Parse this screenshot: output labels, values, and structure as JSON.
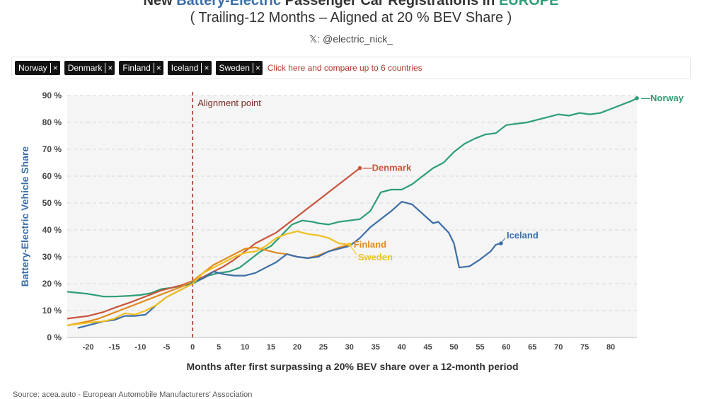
{
  "header": {
    "title_prefix": "New ",
    "title_blue": "Battery-Electric",
    "title_mid": " Passenger Car Registrations in ",
    "title_green": "EUROPE",
    "subtitle": "( Trailing-12 Months – Aligned at 20 % BEV Share )",
    "handle": "𝕏: @electric_nick_"
  },
  "filters": {
    "chips": [
      {
        "label": "Norway",
        "remove": "×"
      },
      {
        "label": "Denmark",
        "remove": "×"
      },
      {
        "label": "Finland",
        "remove": "×"
      },
      {
        "label": "Iceland",
        "remove": "×"
      },
      {
        "label": "Sweden",
        "remove": "×"
      }
    ],
    "compare_link": "Click here and compare up to 6 countries"
  },
  "source": "Source: acea.auto - European Automobile Manufacturers' Association",
  "chart_data": {
    "type": "line",
    "xlabel": "Months after first surpassing a 20% BEV share over a 12-month period",
    "ylabel": "Battery-Electric Vehicle Share",
    "xlim": [
      -24,
      85
    ],
    "ylim": [
      0,
      90
    ],
    "x_ticks": [
      -20,
      -15,
      -10,
      -5,
      0,
      5,
      10,
      15,
      20,
      25,
      30,
      35,
      40,
      45,
      50,
      55,
      60,
      65,
      70,
      75,
      80
    ],
    "y_ticks": [
      "0 %",
      "10 %",
      "20 %",
      "30 %",
      "40 %",
      "50 %",
      "60 %",
      "70 %",
      "80 %",
      "90 %"
    ],
    "grid": true,
    "annotation": {
      "x": 0,
      "label": "Alignment point"
    },
    "series": [
      {
        "name": "Norway",
        "color": "#2e9e74",
        "label": "—Norway",
        "points": [
          [
            -24,
            17
          ],
          [
            -20,
            16.2
          ],
          [
            -17,
            15.2
          ],
          [
            -15,
            15.2
          ],
          [
            -12,
            15.5
          ],
          [
            -10,
            15.8
          ],
          [
            -8,
            16.5
          ],
          [
            -6,
            18
          ],
          [
            -4,
            18.5
          ],
          [
            -2,
            19.2
          ],
          [
            0,
            20
          ],
          [
            1,
            21
          ],
          [
            3,
            23
          ],
          [
            5,
            24
          ],
          [
            7,
            24.5
          ],
          [
            9,
            26
          ],
          [
            11,
            29
          ],
          [
            13,
            32
          ],
          [
            15,
            34
          ],
          [
            17,
            38
          ],
          [
            19,
            42
          ],
          [
            21,
            43.5
          ],
          [
            23,
            43
          ],
          [
            24,
            42.5
          ],
          [
            26,
            42
          ],
          [
            28,
            43
          ],
          [
            30,
            43.5
          ],
          [
            32,
            44
          ],
          [
            34,
            47
          ],
          [
            36,
            54
          ],
          [
            38,
            55
          ],
          [
            40,
            55
          ],
          [
            42,
            57
          ],
          [
            44,
            60
          ],
          [
            46,
            63
          ],
          [
            48,
            65
          ],
          [
            50,
            69
          ],
          [
            52,
            72
          ],
          [
            54,
            74
          ],
          [
            56,
            75.5
          ],
          [
            58,
            76
          ],
          [
            60,
            79
          ],
          [
            62,
            79.5
          ],
          [
            64,
            80
          ],
          [
            66,
            81
          ],
          [
            68,
            82
          ],
          [
            70,
            83
          ],
          [
            72,
            82.5
          ],
          [
            74,
            83.5
          ],
          [
            76,
            83
          ],
          [
            78,
            83.5
          ],
          [
            80,
            85
          ],
          [
            82,
            86.5
          ],
          [
            84,
            88
          ],
          [
            85,
            89
          ]
        ]
      },
      {
        "name": "Denmark",
        "color": "#c8553d",
        "label": "—Denmark",
        "points": [
          [
            -24,
            7
          ],
          [
            -20,
            8
          ],
          [
            -17,
            9.5
          ],
          [
            -15,
            11
          ],
          [
            -12,
            13
          ],
          [
            -10,
            14.5
          ],
          [
            -8,
            16
          ],
          [
            -6,
            17.5
          ],
          [
            -4,
            18.5
          ],
          [
            -2,
            19.5
          ],
          [
            0,
            21
          ],
          [
            2,
            22.5
          ],
          [
            4,
            24.5
          ],
          [
            6,
            26.5
          ],
          [
            8,
            29
          ],
          [
            10,
            32
          ],
          [
            12,
            35
          ],
          [
            14,
            37
          ],
          [
            16,
            39
          ],
          [
            18,
            42
          ],
          [
            20,
            45
          ],
          [
            22,
            48
          ],
          [
            24,
            51
          ],
          [
            26,
            54
          ],
          [
            28,
            57
          ],
          [
            30,
            60
          ],
          [
            32,
            63
          ]
        ]
      },
      {
        "name": "Finland",
        "color": "#e08a1e",
        "label": "Finland",
        "points": [
          [
            -24,
            4.5
          ],
          [
            -20,
            6
          ],
          [
            -18,
            7
          ],
          [
            -16,
            8.5
          ],
          [
            -14,
            10
          ],
          [
            -12,
            11.5
          ],
          [
            -10,
            13
          ],
          [
            -8,
            14.5
          ],
          [
            -6,
            16
          ],
          [
            -4,
            17.5
          ],
          [
            -2,
            19
          ],
          [
            0,
            21
          ],
          [
            2,
            24
          ],
          [
            4,
            27
          ],
          [
            6,
            29
          ],
          [
            8,
            31
          ],
          [
            10,
            33
          ],
          [
            12,
            33.5
          ],
          [
            14,
            32.5
          ],
          [
            16,
            31.5
          ],
          [
            18,
            31
          ],
          [
            20,
            30
          ],
          [
            22,
            29.5
          ],
          [
            24,
            30.5
          ],
          [
            26,
            32
          ],
          [
            28,
            33.5
          ],
          [
            30,
            34.5
          ]
        ]
      },
      {
        "name": "Iceland",
        "color": "#3c6ea8",
        "label": "Iceland",
        "points": [
          [
            -22,
            3.5
          ],
          [
            -20,
            4.5
          ],
          [
            -17,
            6
          ],
          [
            -15,
            6.5
          ],
          [
            -13,
            8
          ],
          [
            -11,
            8
          ],
          [
            -9,
            8.5
          ],
          [
            -7,
            12
          ],
          [
            -5,
            15
          ],
          [
            -3,
            17
          ],
          [
            -1,
            19
          ],
          [
            0,
            20.5
          ],
          [
            2,
            22
          ],
          [
            4,
            24.5
          ],
          [
            6,
            23.5
          ],
          [
            8,
            23
          ],
          [
            10,
            23
          ],
          [
            12,
            24
          ],
          [
            14,
            26
          ],
          [
            16,
            28
          ],
          [
            18,
            31
          ],
          [
            20,
            30
          ],
          [
            22,
            29.5
          ],
          [
            24,
            30
          ],
          [
            26,
            32
          ],
          [
            28,
            33
          ],
          [
            30,
            34
          ],
          [
            32,
            37
          ],
          [
            34,
            41
          ],
          [
            36,
            44
          ],
          [
            38,
            47
          ],
          [
            40,
            50.5
          ],
          [
            42,
            49.5
          ],
          [
            44,
            46
          ],
          [
            46,
            42.5
          ],
          [
            47,
            43
          ],
          [
            49,
            39
          ],
          [
            50,
            35
          ],
          [
            51,
            26
          ],
          [
            53,
            26.5
          ],
          [
            55,
            29
          ],
          [
            57,
            32
          ],
          [
            58,
            34.5
          ],
          [
            59,
            35
          ]
        ]
      },
      {
        "name": "Sweden",
        "color": "#f0c020",
        "label": "Sweden",
        "points": [
          [
            -24,
            4.5
          ],
          [
            -20,
            5.5
          ],
          [
            -17,
            6
          ],
          [
            -15,
            7
          ],
          [
            -13,
            9
          ],
          [
            -11,
            8.5
          ],
          [
            -9,
            10
          ],
          [
            -7,
            12
          ],
          [
            -5,
            15
          ],
          [
            -3,
            17
          ],
          [
            -1,
            19
          ],
          [
            0,
            20
          ],
          [
            2,
            24
          ],
          [
            4,
            26
          ],
          [
            6,
            28
          ],
          [
            8,
            30
          ],
          [
            10,
            31.5
          ],
          [
            12,
            32
          ],
          [
            14,
            34
          ],
          [
            16,
            37
          ],
          [
            18,
            38.5
          ],
          [
            20,
            39.5
          ],
          [
            22,
            38.5
          ],
          [
            24,
            38
          ],
          [
            26,
            37
          ],
          [
            28,
            35
          ],
          [
            30,
            34.5
          ]
        ]
      }
    ]
  }
}
